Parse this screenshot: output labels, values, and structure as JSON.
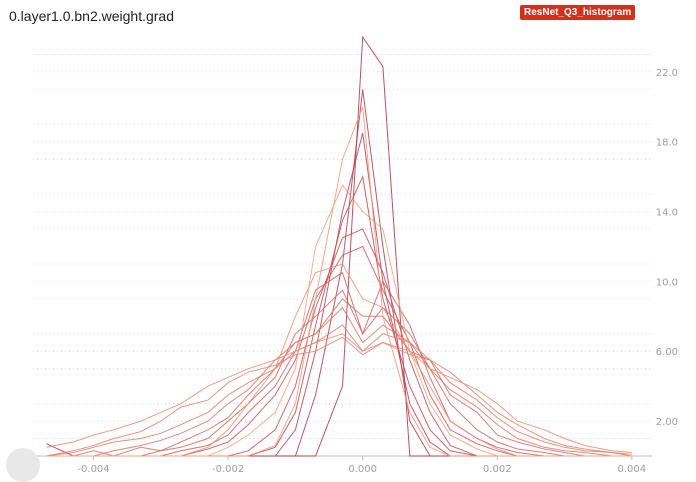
{
  "header": {
    "title": "0.layer1.0.bn2.weight.grad",
    "run_badge": "ResNet_Q3_histogram"
  },
  "colors": {
    "badge": "#d0321e",
    "series_dark": "#b0324a",
    "series_light": "#f4a27e",
    "grid": "#d6d6d6",
    "tick_text": "#9e9e9e"
  },
  "chart_data": {
    "type": "line",
    "subtype": "histogram-overlay",
    "title": "0.layer1.0.bn2.weight.grad",
    "xlim": [
      -0.005,
      0.0045
    ],
    "ylim": [
      0,
      24
    ],
    "x_ticks": [
      "-0.004",
      "-0.002",
      "0.000",
      "0.002",
      "0.004"
    ],
    "y_ticks": [
      "2.00",
      "6.00",
      "10.0",
      "14.0",
      "18.0",
      "22.0"
    ],
    "grid": "horizontal dotted",
    "axis_position": "y-axis on right",
    "x": [
      -0.0047,
      -0.0043,
      -0.004,
      -0.0037,
      -0.0033,
      -0.003,
      -0.0027,
      -0.0023,
      -0.002,
      -0.0017,
      -0.0013,
      -0.001,
      -0.0007,
      -0.0003,
      0.0,
      0.0003,
      0.0007,
      0.001,
      0.0013,
      0.0017,
      0.002,
      0.0023,
      0.0027,
      0.003,
      0.0033,
      0.0037,
      0.004
    ],
    "series": [
      {
        "values": [
          0.7,
          0,
          0,
          0,
          0,
          0,
          0,
          0,
          0,
          0,
          0,
          0,
          0,
          4.0,
          24.0,
          22.3,
          0,
          0,
          0,
          0,
          0,
          0,
          0,
          0,
          0,
          0,
          0
        ]
      },
      {
        "values": [
          0,
          0,
          0,
          0,
          0,
          0,
          0,
          0,
          0,
          0,
          0,
          0,
          3.5,
          11.0,
          21.0,
          12.0,
          2.0,
          0,
          0,
          0,
          0,
          0,
          0,
          0,
          0,
          0,
          0
        ]
      },
      {
        "values": [
          0,
          0,
          0,
          0,
          0,
          0,
          0,
          0,
          0,
          0,
          0,
          1.5,
          6.0,
          14.0,
          18.5,
          10.0,
          3.0,
          0.8,
          0,
          0,
          0,
          0,
          0,
          0,
          0,
          0,
          0
        ]
      },
      {
        "values": [
          0,
          0,
          0,
          0,
          0,
          0,
          0,
          0,
          0,
          0,
          0.5,
          2.5,
          7.5,
          13.5,
          16.0,
          9.0,
          4.0,
          1.5,
          0.3,
          0,
          0,
          0,
          0,
          0,
          0,
          0,
          0
        ]
      },
      {
        "values": [
          0,
          0,
          0,
          0,
          0,
          0,
          0,
          0,
          0,
          0.3,
          1.5,
          4.0,
          8.5,
          12.5,
          13.0,
          10.5,
          5.5,
          2.5,
          0.6,
          0,
          0,
          0,
          0,
          0,
          0,
          0,
          0
        ]
      },
      {
        "values": [
          0,
          0,
          0,
          0,
          0,
          0,
          0,
          0.4,
          0.8,
          1.8,
          3.5,
          5.5,
          9.0,
          11.5,
          12.0,
          9.5,
          6.5,
          3.5,
          1.5,
          0.7,
          0.3,
          0,
          0,
          0,
          0,
          0,
          0
        ]
      },
      {
        "values": [
          0,
          0,
          0,
          0,
          0,
          0,
          0.3,
          0.6,
          1.2,
          2.5,
          4.0,
          6.0,
          9.5,
          10.5,
          7.0,
          10.0,
          7.5,
          4.5,
          2.0,
          1.0,
          0.5,
          0.2,
          0,
          0,
          0,
          0,
          0
        ]
      },
      {
        "values": [
          0,
          0,
          0,
          0,
          0,
          0.3,
          0.5,
          1.0,
          2.0,
          3.0,
          4.5,
          7.0,
          8.0,
          9.5,
          7.0,
          8.5,
          7.0,
          5.0,
          3.0,
          1.5,
          0.8,
          0.4,
          0.2,
          0,
          0,
          0,
          0
        ]
      },
      {
        "values": [
          0,
          0,
          0.3,
          0,
          0.5,
          0.3,
          0.8,
          1.5,
          2.2,
          3.5,
          5.0,
          6.5,
          7.0,
          9.0,
          8.0,
          8.0,
          6.0,
          5.5,
          3.5,
          2.5,
          1.2,
          0.8,
          0.4,
          0.2,
          0,
          0,
          0
        ]
      },
      {
        "values": [
          0,
          0,
          0,
          0.3,
          0.6,
          0.9,
          1.3,
          2.0,
          3.0,
          3.8,
          5.5,
          6.5,
          7.0,
          8.5,
          6.5,
          7.5,
          6.5,
          5.0,
          3.8,
          2.8,
          1.8,
          1.0,
          0.5,
          0.3,
          0.2,
          0,
          0
        ]
      },
      {
        "values": [
          0,
          0.2,
          0.5,
          0.8,
          1.0,
          1.3,
          1.8,
          2.5,
          3.5,
          4.2,
          5.0,
          6.0,
          6.5,
          7.5,
          6.0,
          7.0,
          6.5,
          5.5,
          4.2,
          3.2,
          2.2,
          1.4,
          0.8,
          0.5,
          0.3,
          0.2,
          0
        ]
      },
      {
        "values": [
          0,
          0.3,
          0.6,
          1.0,
          1.4,
          2.0,
          2.8,
          3.2,
          4.2,
          4.8,
          5.2,
          5.8,
          6.0,
          6.8,
          5.8,
          6.5,
          5.8,
          5.5,
          4.8,
          3.5,
          2.5,
          1.8,
          1.0,
          0.6,
          0.4,
          0.2,
          0.1
        ]
      },
      {
        "values": [
          0.5,
          0.8,
          1.2,
          1.5,
          2.0,
          2.5,
          3.0,
          4.0,
          4.5,
          5.0,
          5.5,
          6.0,
          6.5,
          7.0,
          6.0,
          6.5,
          6.0,
          5.0,
          4.5,
          3.8,
          3.0,
          2.0,
          1.5,
          1.0,
          0.6,
          0.3,
          0.2
        ]
      },
      {
        "values": [
          0,
          0,
          0,
          0,
          0,
          0,
          0,
          0.5,
          1.5,
          3.0,
          5.0,
          8.0,
          10.5,
          11.0,
          9.0,
          8.5,
          6.0,
          4.0,
          2.0,
          1.0,
          0.4,
          0,
          0,
          0,
          0,
          0,
          0
        ]
      },
      {
        "values": [
          0,
          0,
          0,
          0,
          0,
          0,
          0,
          0,
          0,
          0,
          0.6,
          3.0,
          9.0,
          17.0,
          20.0,
          8.0,
          2.5,
          0.5,
          0,
          0,
          0,
          0,
          0,
          0,
          0,
          0,
          0
        ]
      },
      {
        "values": [
          0,
          0,
          0,
          0,
          0,
          0,
          0,
          0,
          0.5,
          1.2,
          2.5,
          5.0,
          12.0,
          15.5,
          14.0,
          13.0,
          6.0,
          3.0,
          1.2,
          0.4,
          0,
          0,
          0,
          0,
          0,
          0,
          0
        ]
      }
    ]
  }
}
